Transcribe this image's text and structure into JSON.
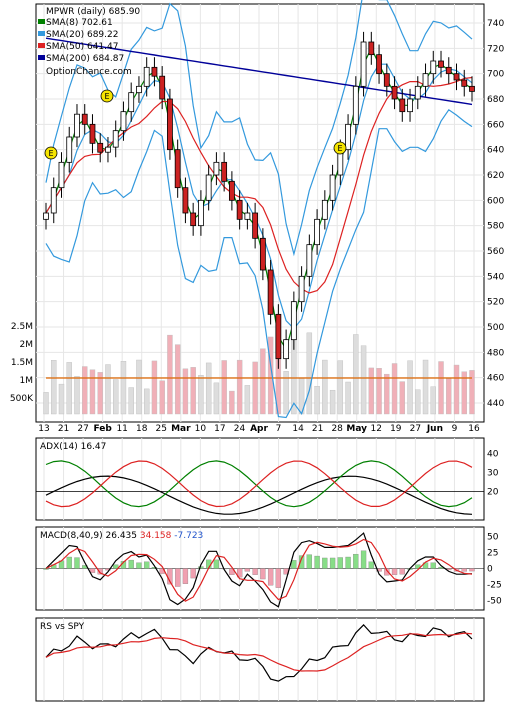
{
  "chart_data": [
    {
      "type": "candlestick",
      "panel": "price",
      "legend": [
        {
          "label": "MPWR (daily)",
          "value": "685.90",
          "color": "#000000"
        },
        {
          "label": "SMA(8)",
          "value": "702.61",
          "color": "#008000"
        },
        {
          "label": "SMA(20)",
          "value": "689.22",
          "color": "#3399dd"
        },
        {
          "label": "SMA(50)",
          "value": "641.47",
          "color": "#dd2222"
        },
        {
          "label": "SMA(200)",
          "value": "684.87",
          "color": "#000099"
        }
      ],
      "watermark": "OptionChance.com",
      "earnings_marker": "E",
      "y_ticks": [
        440,
        460,
        480,
        500,
        520,
        540,
        560,
        580,
        600,
        620,
        640,
        660,
        680,
        700,
        720,
        740
      ],
      "ylim": [
        425,
        755
      ],
      "x_ticks": [
        "13",
        "21",
        "27",
        "Feb",
        "11",
        "18",
        "25",
        "Mar",
        "10",
        "17",
        "24",
        "Apr",
        "7",
        "14",
        "21",
        "28",
        "May",
        "12",
        "19",
        "27",
        "Jun",
        "9",
        "16"
      ],
      "close_approx": [
        590,
        610,
        630,
        650,
        668,
        660,
        645,
        638,
        642,
        655,
        670,
        685,
        690,
        705,
        698,
        680,
        640,
        610,
        590,
        580,
        600,
        620,
        630,
        615,
        600,
        585,
        590,
        570,
        545,
        510,
        475,
        490,
        520,
        540,
        565,
        585,
        600,
        620,
        640,
        660,
        690,
        725,
        715,
        700,
        690,
        680,
        670,
        680,
        690,
        700,
        710,
        705,
        700,
        695,
        690,
        686
      ]
    },
    {
      "type": "bar",
      "panel": "volume",
      "y_ticks": [
        "2.5M",
        "2M",
        "1.5M",
        "1M",
        "500K"
      ],
      "moving_average_color": "#dd6600"
    },
    {
      "type": "line",
      "panel": "indicator",
      "label": "ADX(14)",
      "value": "16.47",
      "y_ticks": [
        20,
        30,
        40
      ],
      "ylim": [
        5,
        48
      ],
      "series_colors": {
        "adx": "#000000",
        "plus_di": "#008000",
        "minus_di": "#dd2222"
      }
    },
    {
      "type": "line",
      "panel": "indicator",
      "label": "MACD(8,40,9)",
      "values": [
        {
          "text": "26.435",
          "color": "#000000"
        },
        {
          "text": "34.158",
          "color": "#dd2222"
        },
        {
          "text": "-7.723",
          "color": "#2255cc"
        }
      ],
      "y_ticks": [
        50,
        25,
        0,
        -25,
        -50
      ],
      "ylim": [
        -65,
        65
      ]
    },
    {
      "type": "line",
      "panel": "indicator",
      "label": "RS vs SPY",
      "series_colors": {
        "rs": "#000000",
        "average": "#dd2222"
      }
    }
  ]
}
